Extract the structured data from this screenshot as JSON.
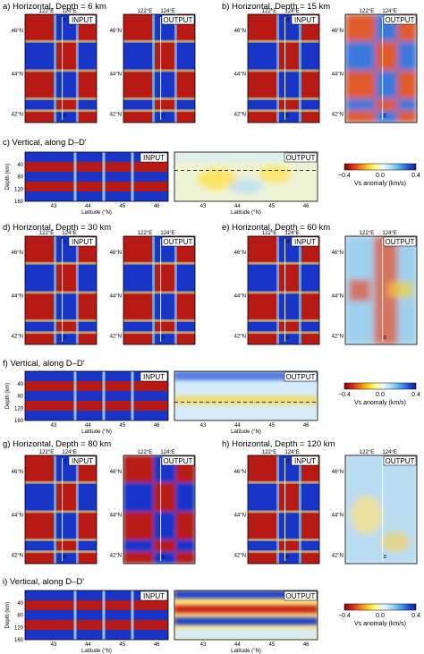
{
  "colors": {
    "red": "#b71a14",
    "blue": "#1835c8",
    "line_white": "#ffffff",
    "dash": "#000000",
    "colorbar_stops": [
      "#8b0000",
      "#d42a14",
      "#f07a1c",
      "#ffd21e",
      "#ffff9a",
      "#e8f6ff",
      "#9fd8f4",
      "#4aa6e8",
      "#2256d6",
      "#101c92"
    ]
  },
  "labels": {
    "input": "INPUT",
    "output": "OUTPUT",
    "point_D": "D",
    "point_Dp": "D'"
  },
  "map_ticks": {
    "lon": [
      "122°E",
      "124°E"
    ],
    "lat": [
      "46°N",
      "44°N",
      "42°N"
    ]
  },
  "section_ticks": {
    "depth_axis_label": "Depth (km)",
    "lat_axis_label": "Latitude (°N)",
    "depth": [
      "40",
      "80",
      "120",
      "160"
    ],
    "lat": [
      "43",
      "44",
      "45",
      "46"
    ]
  },
  "colorbar": {
    "label": "Vs anomaly (km/s)",
    "ticks": [
      "−0.4",
      "0.0",
      "0.4"
    ]
  },
  "panels": {
    "a": {
      "title": "a) Horizontal, Depth = 6 km",
      "output_style": "sharp",
      "output_mode": "sharp-checker"
    },
    "b": {
      "title": "b) Horizontal, Depth = 15 km",
      "output_style": "blurred",
      "output_mode": "smooth-checker"
    },
    "c": {
      "title": "c) Vertical, along D–D'",
      "output_mode": "pale",
      "dash_depth_km": 60
    },
    "d": {
      "title": "d) Horizontal, Depth = 30 km",
      "output_mode": "sharp-checker"
    },
    "e": {
      "title": "e) Horizontal, Depth = 60 km",
      "output_mode": "pale-checker"
    },
    "f": {
      "title": "f) Vertical, along D–D'",
      "output_mode": "stripes",
      "dash_depth_km": 100
    },
    "g": {
      "title": "g) Horizontal, Depth = 80 km",
      "output_mode": "mixed"
    },
    "h": {
      "title": "h) Horizontal, Depth = 120 km",
      "output_mode": "pale-noise"
    },
    "i": {
      "title": "i) Vertical, along D–D'",
      "output_mode": "stripes-strong"
    }
  }
}
